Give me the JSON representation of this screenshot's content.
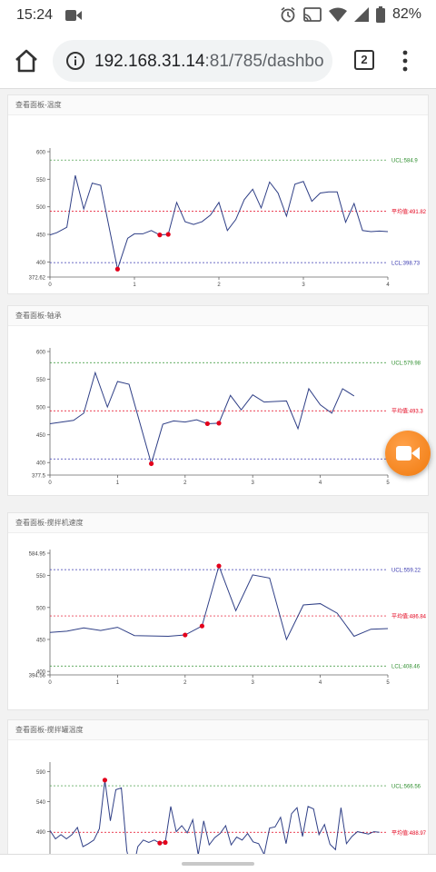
{
  "status_bar": {
    "time": "15:24",
    "battery": "82%",
    "icons": [
      "record-icon",
      "alarm-icon",
      "cast-icon",
      "wifi-icon",
      "signal-icon",
      "battery-icon"
    ]
  },
  "browser": {
    "url_host": "192.168.31.14",
    "url_rest": ":81/785/dashbo",
    "tab_count": "2"
  },
  "colors": {
    "line": "#2f3f86",
    "alarm_point": "#e3001b",
    "ucl": "#2f8f2f",
    "center": "#e3001b",
    "lcl": "#3a3ab0",
    "fab": "#f2841c"
  },
  "charts": [
    {
      "title": "查看面板-温度",
      "ucl_label": "UCL:584.9",
      "center_label": "平均值:491.82",
      "lcl_label": "LCL:398.73",
      "ucl": 584.9,
      "center": 491.82,
      "lcl": 398.73,
      "ucl_color": "#2f8f2f",
      "lcl_color": "#3a3ab0",
      "ylim": [
        372.62,
        600
      ],
      "y_ticks": [
        "600",
        "550",
        "500",
        "450",
        "400",
        "372.62"
      ],
      "y_tick_values": [
        600,
        550,
        500,
        450,
        400,
        372.62
      ],
      "xlim": [
        0,
        4
      ],
      "x_ticks": [
        "0",
        "1",
        "2",
        "3",
        "4"
      ],
      "x_tick_values": [
        0,
        1,
        2,
        3,
        4
      ],
      "x": [
        0,
        0.08,
        0.2,
        0.3,
        0.4,
        0.5,
        0.6,
        0.8,
        0.92,
        1.0,
        1.1,
        1.2,
        1.3,
        1.4,
        1.5,
        1.6,
        1.7,
        1.8,
        1.9,
        2.0,
        2.1,
        2.2,
        2.3,
        2.4,
        2.5,
        2.6,
        2.7,
        2.8,
        2.9,
        3.0,
        3.1,
        3.2,
        3.3,
        3.4,
        3.5,
        3.6,
        3.7,
        3.8,
        3.9,
        4.0
      ],
      "y": [
        449,
        453,
        463,
        557,
        496,
        543,
        539,
        387,
        443,
        451,
        451,
        457,
        449,
        450,
        508,
        473,
        468,
        473,
        485,
        508,
        457,
        477,
        513,
        532,
        498,
        545,
        525,
        483,
        541,
        546,
        510,
        525,
        527,
        527,
        472,
        506,
        457,
        455,
        456,
        455
      ],
      "alarms": [
        7,
        12,
        13
      ]
    },
    {
      "title": "查看面板-轴承",
      "ucl_label": "UCL:579.98",
      "center_label": "平均值:493.3",
      "lcl_label": "",
      "ucl": 579.98,
      "center": 493.3,
      "lcl": 406.6,
      "ucl_color": "#2f8f2f",
      "lcl_color": "#3a3ab0",
      "ylim": [
        377.5,
        600
      ],
      "y_ticks": [
        "600",
        "550",
        "500",
        "450",
        "400",
        "377.5"
      ],
      "y_tick_values": [
        600,
        550,
        500,
        450,
        400,
        377.5
      ],
      "xlim": [
        0,
        5
      ],
      "x_ticks": [
        "0",
        "1",
        "2",
        "3",
        "4",
        "5"
      ],
      "x_tick_values": [
        0,
        1,
        2,
        3,
        4,
        5
      ],
      "x": [
        0,
        0.35,
        0.5,
        0.67,
        0.85,
        1.0,
        1.17,
        1.5,
        1.67,
        1.83,
        2.0,
        2.17,
        2.33,
        2.5,
        2.67,
        2.83,
        3.0,
        3.17,
        3.33,
        3.5,
        3.67,
        3.83,
        4.0,
        4.17,
        4.33,
        4.5
      ],
      "y": [
        470,
        476,
        489,
        562,
        500,
        546,
        541,
        398,
        469,
        475,
        473,
        477,
        470,
        471,
        521,
        495,
        522,
        509,
        510,
        511,
        461,
        533,
        504,
        489,
        533,
        520
      ],
      "alarms": [
        7,
        12,
        13
      ]
    },
    {
      "title": "查看面板-搅拌机速度",
      "ucl_label": "UCL:559.22",
      "center_label": "平均值:486.84",
      "lcl_label": "LCL:408.46",
      "ucl": 559.22,
      "center": 486.84,
      "lcl": 408.46,
      "ucl_color": "#3a3ab0",
      "lcl_color": "#2f8f2f",
      "ylim": [
        394.56,
        584.95
      ],
      "y_ticks": [
        "584.95",
        "550",
        "500",
        "450",
        "400",
        "394.56"
      ],
      "y_tick_values": [
        584.95,
        550,
        500,
        450,
        400,
        394.56
      ],
      "xlim": [
        0,
        5
      ],
      "x_ticks": [
        "0",
        "1",
        "2",
        "3",
        "4",
        "5"
      ],
      "x_tick_values": [
        0,
        1,
        2,
        3,
        4,
        5
      ],
      "x": [
        0,
        0.25,
        0.5,
        0.75,
        1.0,
        1.25,
        1.75,
        2.0,
        2.25,
        2.5,
        2.75,
        3.0,
        3.25,
        3.5,
        3.75,
        4.0,
        4.25,
        4.5,
        4.75,
        5.0
      ],
      "y": [
        461,
        463,
        468,
        464,
        469,
        456,
        455,
        457,
        471,
        565,
        495,
        551,
        546,
        450,
        504,
        506,
        491,
        455,
        466,
        467
      ],
      "alarms": [
        7,
        8,
        9
      ]
    },
    {
      "title": "查看面板-搅拌罐温度",
      "ucl_label": "UCL:566.56",
      "center_label": "平均值:488.97",
      "lcl_label": "",
      "ucl": 566.56,
      "center": 488.97,
      "lcl": 411.38,
      "ucl_color": "#2f8f2f",
      "lcl_color": "#3a3ab0",
      "ylim": [
        400,
        600
      ],
      "y_ticks": [
        "590",
        "540",
        "490",
        "450"
      ],
      "y_tick_values": [
        590,
        540,
        490,
        450
      ],
      "xlim": [
        0,
        8
      ],
      "x_ticks": [],
      "x_tick_values": [],
      "x": [
        0,
        0.13,
        0.26,
        0.39,
        0.52,
        0.65,
        0.78,
        0.91,
        1.04,
        1.17,
        1.3,
        1.43,
        1.56,
        1.69,
        1.82,
        1.95,
        2.08,
        2.21,
        2.34,
        2.47,
        2.6,
        2.73,
        2.86,
        2.99,
        3.12,
        3.25,
        3.38,
        3.51,
        3.64,
        3.77,
        3.9,
        4.03,
        4.16,
        4.29,
        4.42,
        4.55,
        4.68,
        4.81,
        4.94,
        5.07,
        5.2,
        5.33,
        5.46,
        5.59,
        5.72,
        5.85,
        5.98,
        6.11,
        6.24,
        6.37,
        6.5,
        6.63,
        6.76,
        6.89,
        7.02,
        7.15,
        7.28,
        7.41,
        7.54,
        7.67,
        7.8
      ],
      "y": [
        492,
        478,
        485,
        478,
        485,
        497,
        465,
        470,
        476,
        495,
        576,
        508,
        560,
        563,
        458,
        420,
        465,
        476,
        472,
        476,
        471,
        472,
        532,
        490,
        500,
        488,
        510,
        451,
        508,
        468,
        480,
        487,
        500,
        468,
        481,
        476,
        487,
        473,
        470,
        452,
        496,
        498,
        514,
        470,
        520,
        530,
        482,
        532,
        528,
        485,
        502,
        469,
        460,
        530,
        470,
        482,
        490,
        488,
        486,
        490,
        489
      ],
      "alarms": [
        10,
        20,
        21
      ]
    }
  ]
}
